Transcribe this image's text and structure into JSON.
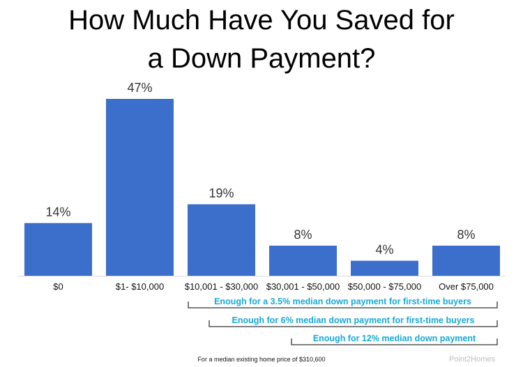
{
  "chart_data": {
    "type": "bar",
    "title_lines": [
      "How Much Have You Saved for",
      "a Down Payment?"
    ],
    "categories": [
      "$0",
      "$1- $10,000",
      "$10,001 - $30,000",
      "$30,001 - $50,000",
      "$50,000 - $75,000",
      "Over $75,000"
    ],
    "values": [
      14,
      47,
      19,
      8,
      4,
      8
    ],
    "value_labels": [
      "14%",
      "47%",
      "19%",
      "8%",
      "4%",
      "8%"
    ],
    "ylim": [
      0,
      50
    ],
    "grid": false,
    "legend": "none",
    "colors": {
      "bar": "#3b6fcb",
      "axis": "#d9d9d9",
      "bracket": "#333333",
      "bracket_text": "#16a9d6"
    },
    "brackets": [
      {
        "text": "Enough for a 3.5% median down payment for first-time buyers",
        "from_category": 2,
        "to_category": 5
      },
      {
        "text": "Enough for 6% median down payment for first-time buyers",
        "from_category": 2,
        "to_category": 5
      },
      {
        "text": "Enough for 12% median down payment",
        "from_category": 3,
        "to_category": 5
      }
    ],
    "footnote": "For a median existing home price of $310,600",
    "watermark": "Point2Homes"
  }
}
